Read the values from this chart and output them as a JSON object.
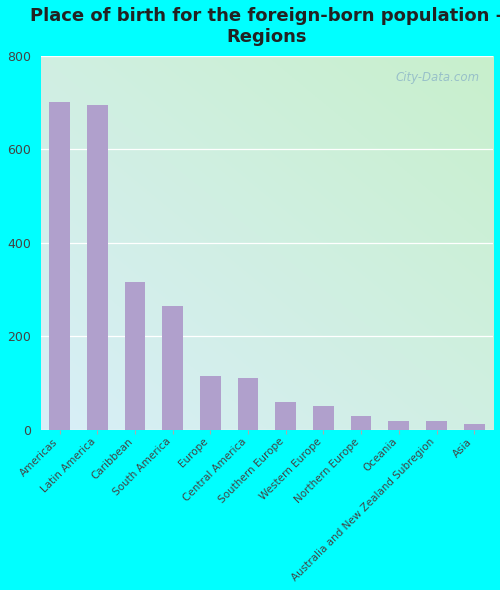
{
  "title": "Place of birth for the foreign-born population -\nRegions",
  "categories": [
    "Americas",
    "Latin America",
    "Caribbean",
    "South America",
    "Europe",
    "Central America",
    "Southern Europe",
    "Western Europe",
    "Northern Europe",
    "Oceania",
    "Australia and New Zealand Subregion",
    "Asia"
  ],
  "values": [
    700,
    695,
    315,
    265,
    115,
    110,
    58,
    50,
    30,
    18,
    18,
    12
  ],
  "bar_color": "#b0a0cc",
  "ylim": [
    0,
    800
  ],
  "yticks": [
    0,
    200,
    400,
    600,
    800
  ],
  "watermark": "City-Data.com",
  "title_fontsize": 13,
  "tick_fontsize": 9,
  "label_fontsize": 7.5,
  "outer_bg": "#00ffff",
  "bg_bottom_left": "#c8f0cc",
  "bg_top_right": "#d8eef8"
}
